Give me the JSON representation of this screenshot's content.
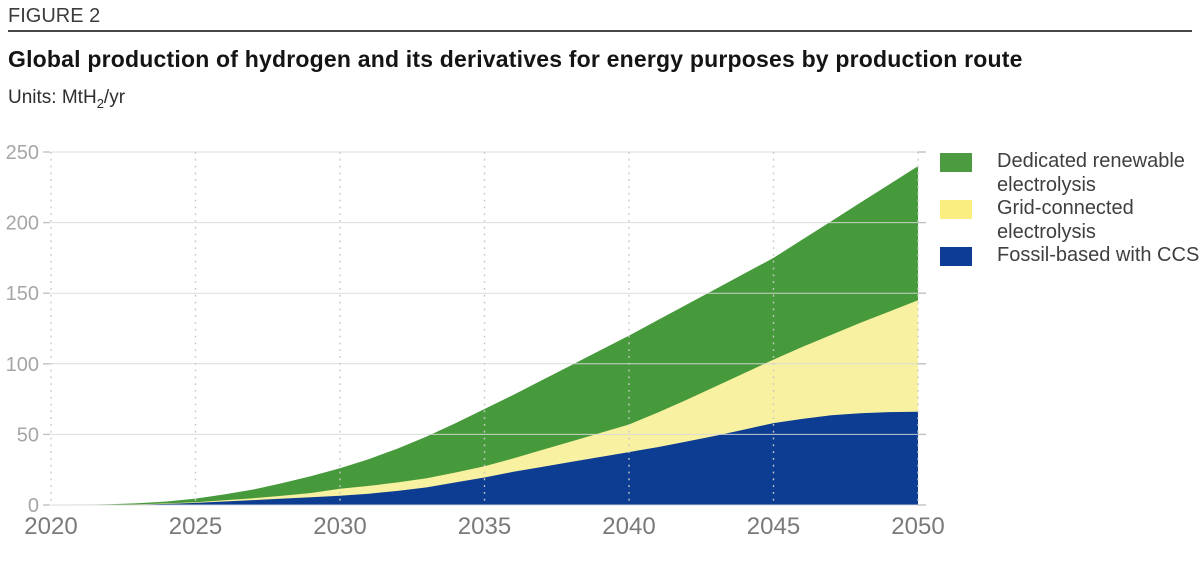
{
  "header": {
    "figure_label": "FIGURE 2",
    "title": "Global production of hydrogen and its derivatives for energy purposes by production route",
    "units_prefix": "Units: MtH",
    "units_sub": "2",
    "units_suffix": "/yr"
  },
  "chart_data": {
    "type": "area",
    "stacked": true,
    "title": "Global production of hydrogen and its derivatives for energy purposes by production route",
    "units": "MtH2/yr",
    "xlim": [
      2020,
      2050
    ],
    "ylim": [
      0,
      250
    ],
    "x_ticks": [
      2020,
      2025,
      2030,
      2035,
      2040,
      2045,
      2050
    ],
    "y_ticks": [
      0,
      50,
      100,
      150,
      200,
      250
    ],
    "grid": true,
    "legend_position": "top-right",
    "x": [
      2020,
      2021,
      2022,
      2023,
      2024,
      2025,
      2026,
      2027,
      2028,
      2029,
      2030,
      2031,
      2032,
      2033,
      2034,
      2035,
      2036,
      2037,
      2038,
      2039,
      2040,
      2041,
      2042,
      2043,
      2044,
      2045,
      2046,
      2047,
      2048,
      2049,
      2050
    ],
    "series": [
      {
        "name": "Dedicated renewable electrolysis",
        "color": "#479a3c",
        "legend_color": "#4d9b40",
        "stack_order": "top",
        "values": [
          0,
          0.13,
          0.35,
          0.75,
          1.4,
          2.5,
          4.2,
          6.2,
          9,
          12,
          14.5,
          19,
          24,
          29.5,
          35,
          40.5,
          45,
          49.5,
          54,
          58.5,
          63,
          65.5,
          67.5,
          69,
          70.5,
          72,
          76,
          80.5,
          85,
          90,
          95
        ]
      },
      {
        "name": "Grid-connected electrolysis",
        "color": "#f8f1a1",
        "legend_color": "#f9ee7f",
        "stack_order": "middle",
        "values": [
          0,
          0.02,
          0.05,
          0.15,
          0.3,
          0.5,
          0.8,
          1.3,
          2,
          3,
          5,
          5.5,
          6,
          6.5,
          7,
          8,
          9.5,
          12,
          14.5,
          17,
          19.5,
          24.5,
          29.5,
          35,
          40,
          45,
          51,
          57,
          64,
          71.2,
          79
        ]
      },
      {
        "name": "Fossil-based with CCS",
        "color": "#0d3d92",
        "legend_color": "#0c3c96",
        "stack_order": "bottom",
        "values": [
          0,
          0.05,
          0.1,
          0.3,
          0.8,
          1.5,
          2.5,
          3.5,
          4.5,
          5.5,
          6.5,
          8,
          10,
          12.5,
          16,
          19.5,
          23.5,
          27,
          30.5,
          34,
          37.5,
          41,
          45,
          49,
          53.5,
          58,
          61,
          63.5,
          65,
          65.8,
          66
        ]
      }
    ],
    "layout": {
      "gridline_color": "#d9d9d9",
      "dotted_line_color": "#c9c9c9",
      "tick_color": "#c2c2c2",
      "y_label_color": "#a6a6a6",
      "x_label_color": "#7a7a7a"
    }
  }
}
